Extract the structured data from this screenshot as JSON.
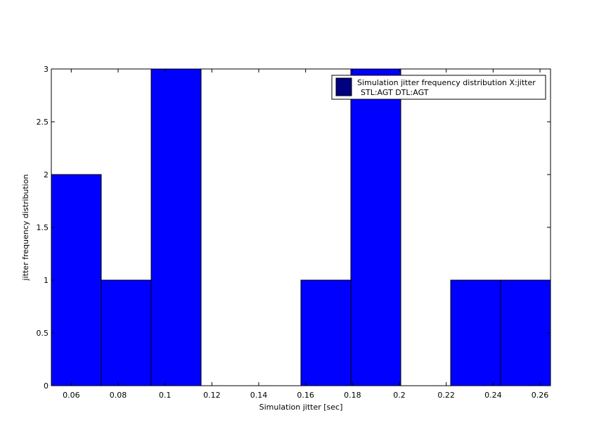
{
  "chart_data": {
    "type": "bar",
    "bin_edges": [
      0.0515,
      0.0728,
      0.0941,
      0.1154,
      0.1367,
      0.158,
      0.1793,
      0.2006,
      0.2219,
      0.2432,
      0.2645
    ],
    "values": [
      2,
      1,
      3,
      0,
      0,
      1,
      3,
      0,
      1,
      1
    ],
    "bar_color": "#0000FF",
    "legend_swatch_color": "#000080",
    "xlim": [
      0.0515,
      0.2645
    ],
    "ylim": [
      0,
      3
    ],
    "xticks": [
      0.06,
      0.08,
      0.1,
      0.12,
      0.14,
      0.16,
      0.18,
      0.2,
      0.22,
      0.24,
      0.26
    ],
    "xtick_labels": [
      "0.06",
      "0.08",
      "0.1",
      "0.12",
      "0.14",
      "0.16",
      "0.18",
      "0.2",
      "0.22",
      "0.24",
      "0.26"
    ],
    "yticks": [
      0,
      0.5,
      1,
      1.5,
      2,
      2.5,
      3
    ],
    "ytick_labels": [
      "0",
      "0.5",
      "1",
      "1.5",
      "2",
      "2.5",
      "3"
    ],
    "xlabel": "Simulation jitter [sec]",
    "ylabel": "jitter frequency distribution",
    "legend": {
      "placement": "top-right",
      "lines": [
        "Simulation jitter frequency distribution X:jitter",
        "STL:AGT DTL:AGT"
      ]
    }
  }
}
